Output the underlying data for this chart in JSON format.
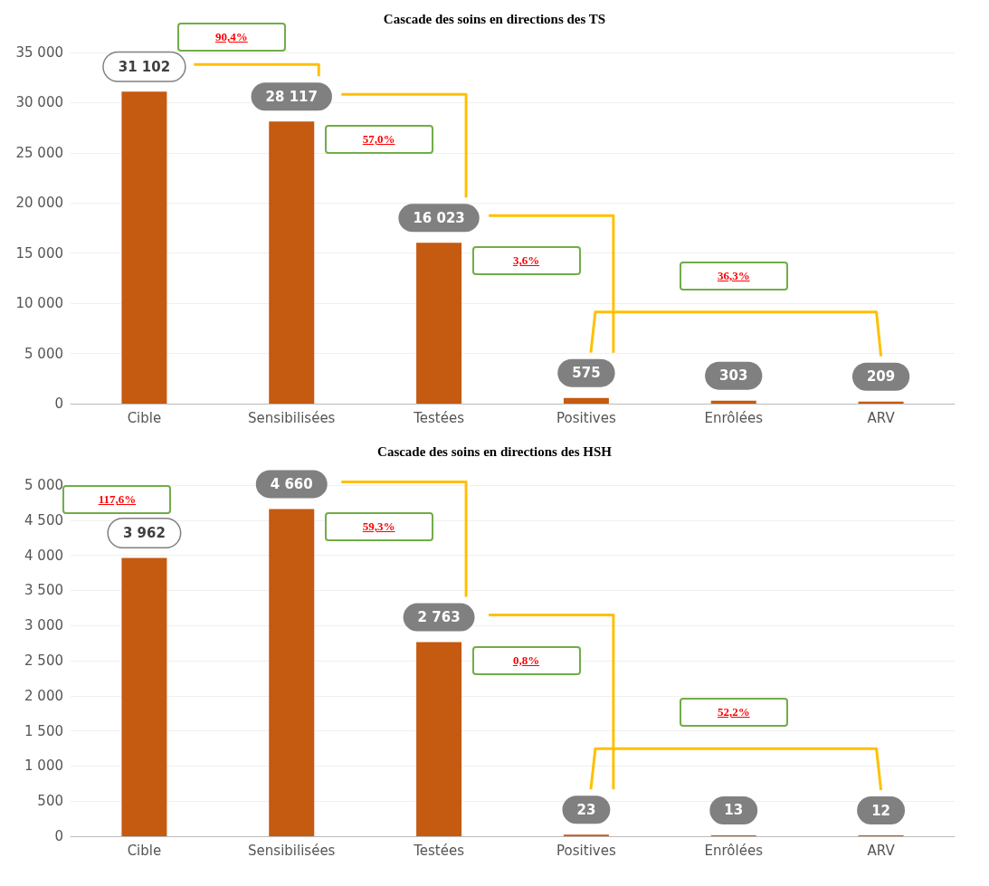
{
  "chart_data": [
    {
      "type": "bar",
      "title": "Cascade des soins en directions des TS",
      "categories": [
        "Cible",
        "Sensibilisées",
        "Testées",
        "Positives",
        "Enrôlées",
        "ARV"
      ],
      "values": [
        31102,
        28117,
        16023,
        575,
        303,
        209
      ],
      "value_labels": [
        "31 102",
        "28 117",
        "16 023",
        "575",
        "303",
        "209"
      ],
      "color": "#c55a11",
      "ylim": [
        0,
        35000
      ],
      "yticks": [
        {
          "value": 0,
          "label": "0"
        },
        {
          "value": 5000,
          "label": "5 000"
        },
        {
          "value": 10000,
          "label": "10 000"
        },
        {
          "value": 15000,
          "label": "15 000"
        },
        {
          "value": 20000,
          "label": "20 000"
        },
        {
          "value": 25000,
          "label": "25 000"
        },
        {
          "value": 30000,
          "label": "30 000"
        },
        {
          "value": 35000,
          "label": "35 000"
        }
      ],
      "grid": "y",
      "annotations": [
        "90,4%",
        "57,0%",
        "3,6%",
        "36,3%"
      ]
    },
    {
      "type": "bar",
      "title": "Cascade des soins en directions des HSH",
      "categories": [
        "Cible",
        "Sensibilisées",
        "Testées",
        "Positives",
        "Enrôlées",
        "ARV"
      ],
      "values": [
        3962,
        4660,
        2763,
        23,
        13,
        12
      ],
      "value_labels": [
        "3 962",
        "4 660",
        "2 763",
        "23",
        "13",
        "12"
      ],
      "color": "#c55a11",
      "ylim": [
        0,
        5000
      ],
      "yticks": [
        {
          "value": 0,
          "label": "0"
        },
        {
          "value": 500,
          "label": "500"
        },
        {
          "value": 1000,
          "label": "1 000"
        },
        {
          "value": 1500,
          "label": "1 500"
        },
        {
          "value": 2000,
          "label": "2 000"
        },
        {
          "value": 2500,
          "label": "2 500"
        },
        {
          "value": 3000,
          "label": "3 000"
        },
        {
          "value": 3500,
          "label": "3 500"
        },
        {
          "value": 4000,
          "label": "4 000"
        },
        {
          "value": 4500,
          "label": "4 500"
        },
        {
          "value": 5000,
          "label": "5 000"
        }
      ],
      "grid": "y",
      "annotations": [
        "117,6%",
        "59,3%",
        "0,8%",
        "52,2%"
      ]
    }
  ]
}
